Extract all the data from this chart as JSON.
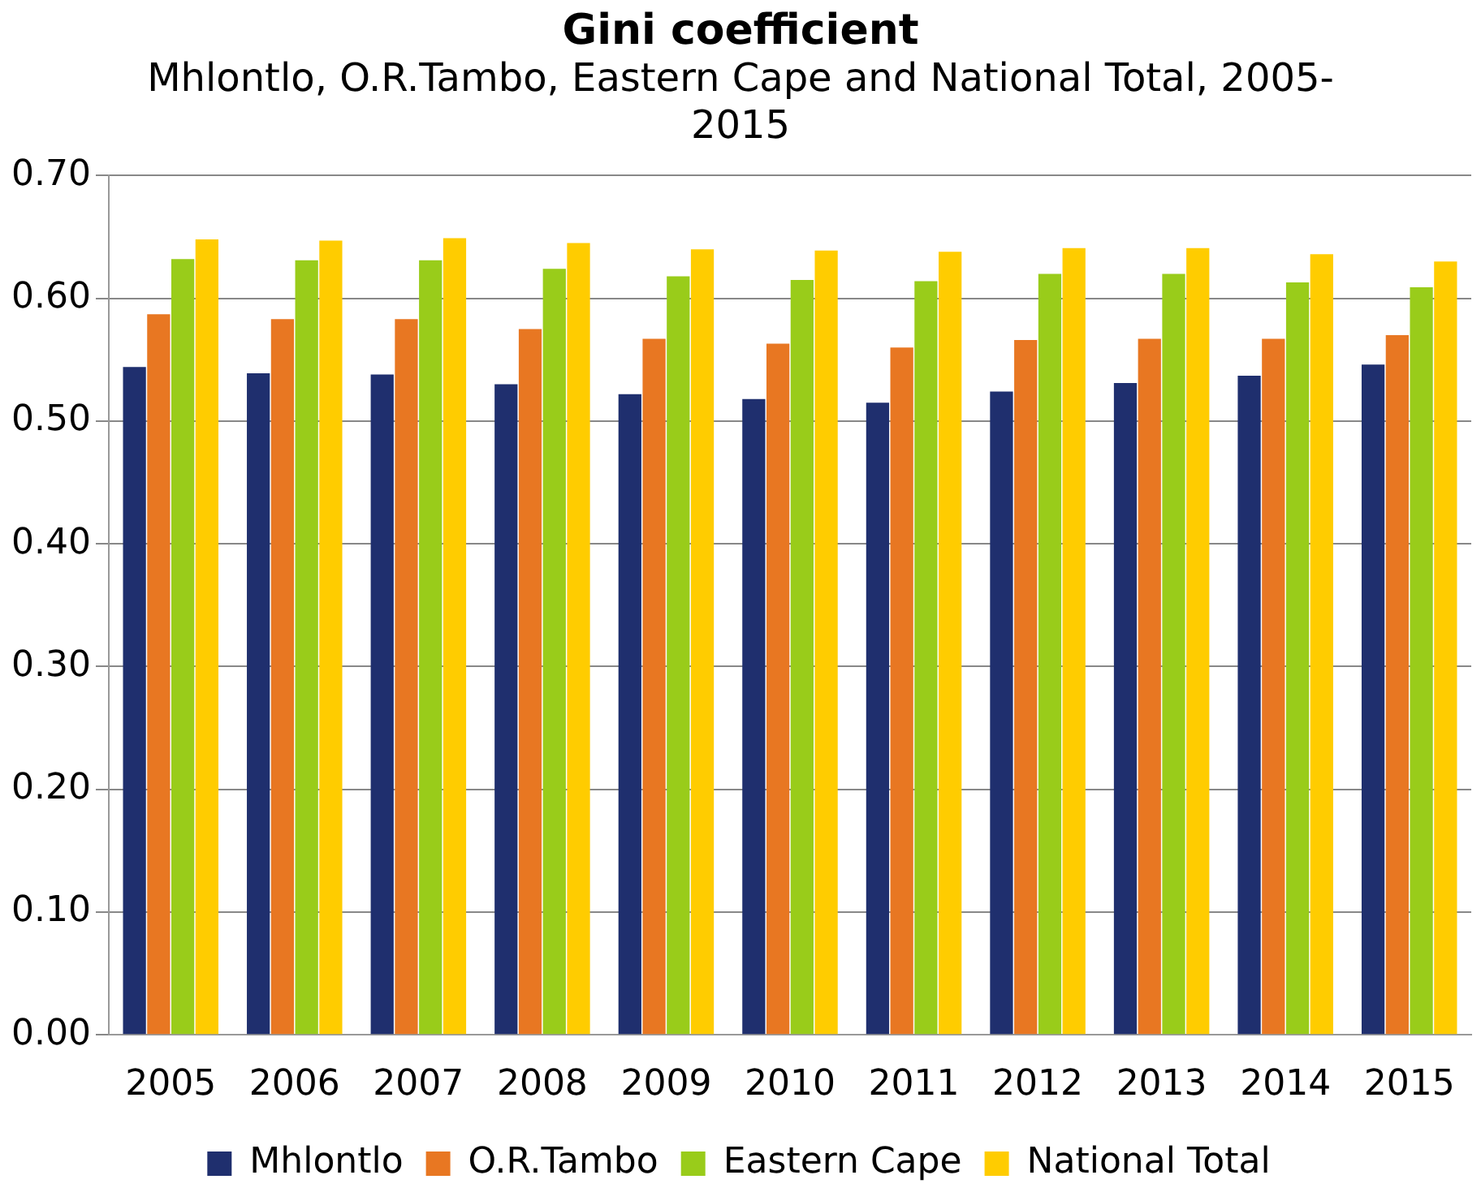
{
  "chart_data": {
    "type": "bar",
    "title": "Gini coefficient",
    "subtitle": "Mhlontlo, O.R.Tambo, Eastern Cape and National Total, 2005-2015",
    "categories": [
      "2005",
      "2006",
      "2007",
      "2008",
      "2009",
      "2010",
      "2011",
      "2012",
      "2013",
      "2014",
      "2015"
    ],
    "series": [
      {
        "name": "Mhlontlo",
        "color": "#1f2f6e",
        "values": [
          0.544,
          0.539,
          0.538,
          0.53,
          0.522,
          0.518,
          0.515,
          0.524,
          0.531,
          0.537,
          0.546
        ]
      },
      {
        "name": "O.R.Tambo",
        "color": "#e87722",
        "values": [
          0.587,
          0.583,
          0.583,
          0.575,
          0.567,
          0.563,
          0.56,
          0.566,
          0.567,
          0.567,
          0.57
        ]
      },
      {
        "name": "Eastern Cape",
        "color": "#99cc1a",
        "values": [
          0.632,
          0.631,
          0.631,
          0.624,
          0.618,
          0.615,
          0.614,
          0.62,
          0.62,
          0.613,
          0.609
        ]
      },
      {
        "name": "National Total",
        "color": "#ffcc00",
        "values": [
          0.648,
          0.647,
          0.649,
          0.645,
          0.64,
          0.639,
          0.638,
          0.641,
          0.641,
          0.636,
          0.63
        ]
      }
    ],
    "ylim": [
      0,
      0.7
    ],
    "yticks": [
      {
        "value": 0,
        "label": "0.00"
      },
      {
        "value": 0.1,
        "label": "0.10"
      },
      {
        "value": 0.2,
        "label": "0.20"
      },
      {
        "value": 0.3,
        "label": "0.30"
      },
      {
        "value": 0.4,
        "label": "0.40"
      },
      {
        "value": 0.5,
        "label": "0.50"
      },
      {
        "value": 0.6,
        "label": "0.60"
      },
      {
        "value": 0.7,
        "label": "0.70"
      }
    ],
    "grid": "y",
    "legend": "bottom"
  }
}
